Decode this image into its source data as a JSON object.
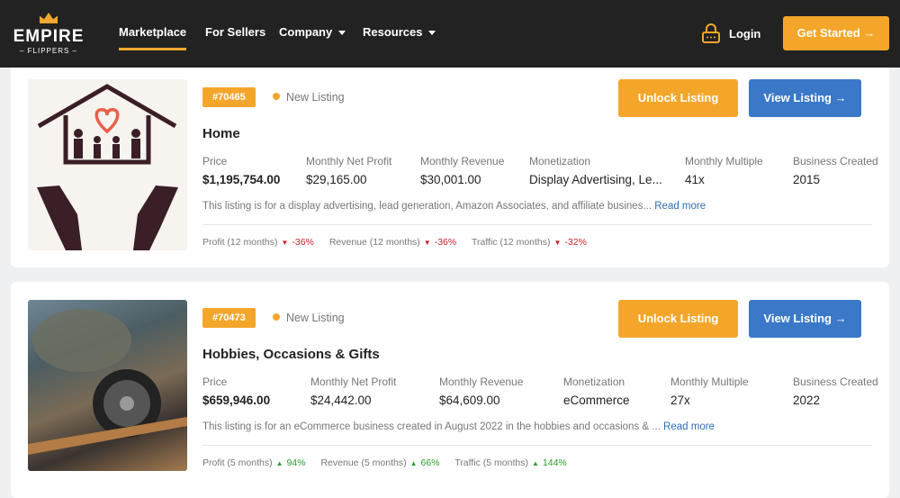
{
  "nav": {
    "logo_top": "EMPIRE",
    "logo_bottom": "– FLIPPERS –",
    "items": [
      {
        "label": "Marketplace"
      },
      {
        "label": "For Sellers"
      },
      {
        "label": "Company"
      },
      {
        "label": "Resources"
      }
    ],
    "login": "Login",
    "get_started": "Get Started →",
    "accent": "#f4a62a"
  },
  "listings": [
    {
      "id": "#70465",
      "status": "New Listing",
      "unlock": "Unlock Listing",
      "view": "View Listing →",
      "title": "Home",
      "labels": [
        "Price",
        "Monthly Net Profit",
        "Monthly Revenue",
        "Monetization",
        "Monthly Multiple",
        "Business Created"
      ],
      "values": [
        "$1,195,754.00",
        "$29,165.00",
        "$30,001.00",
        "Display Advertising, Le...",
        "41x",
        "2015"
      ],
      "description": "This listing is for a display advertising, lead generation, Amazon Associates, and affiliate busines...",
      "read_more": "Read more",
      "trends": [
        {
          "label": "Profit (12 months)",
          "dir": "down",
          "value": "-36%"
        },
        {
          "label": "Revenue (12 months)",
          "dir": "down",
          "value": "-36%"
        },
        {
          "label": "Traffic (12 months)",
          "dir": "down",
          "value": "-32%"
        }
      ]
    },
    {
      "id": "#70473",
      "status": "New Listing",
      "unlock": "Unlock Listing",
      "view": "View Listing →",
      "title": "Hobbies, Occasions & Gifts",
      "labels": [
        "Price",
        "Monthly Net Profit",
        "Monthly Revenue",
        "Monetization",
        "Monthly Multiple",
        "Business Created"
      ],
      "values": [
        "$659,946.00",
        "$24,442.00",
        "$64,609.00",
        "eCommerce",
        "27x",
        "2022"
      ],
      "description": "This listing is for an eCommerce business created in August 2022 in the hobbies and occasions & ...",
      "read_more": "Read more",
      "trends": [
        {
          "label": "Profit (5 months)",
          "dir": "up",
          "value": "94%"
        },
        {
          "label": "Revenue (5 months)",
          "dir": "up",
          "value": "66%"
        },
        {
          "label": "Traffic (5 months)",
          "dir": "up",
          "value": "144%"
        }
      ]
    }
  ]
}
